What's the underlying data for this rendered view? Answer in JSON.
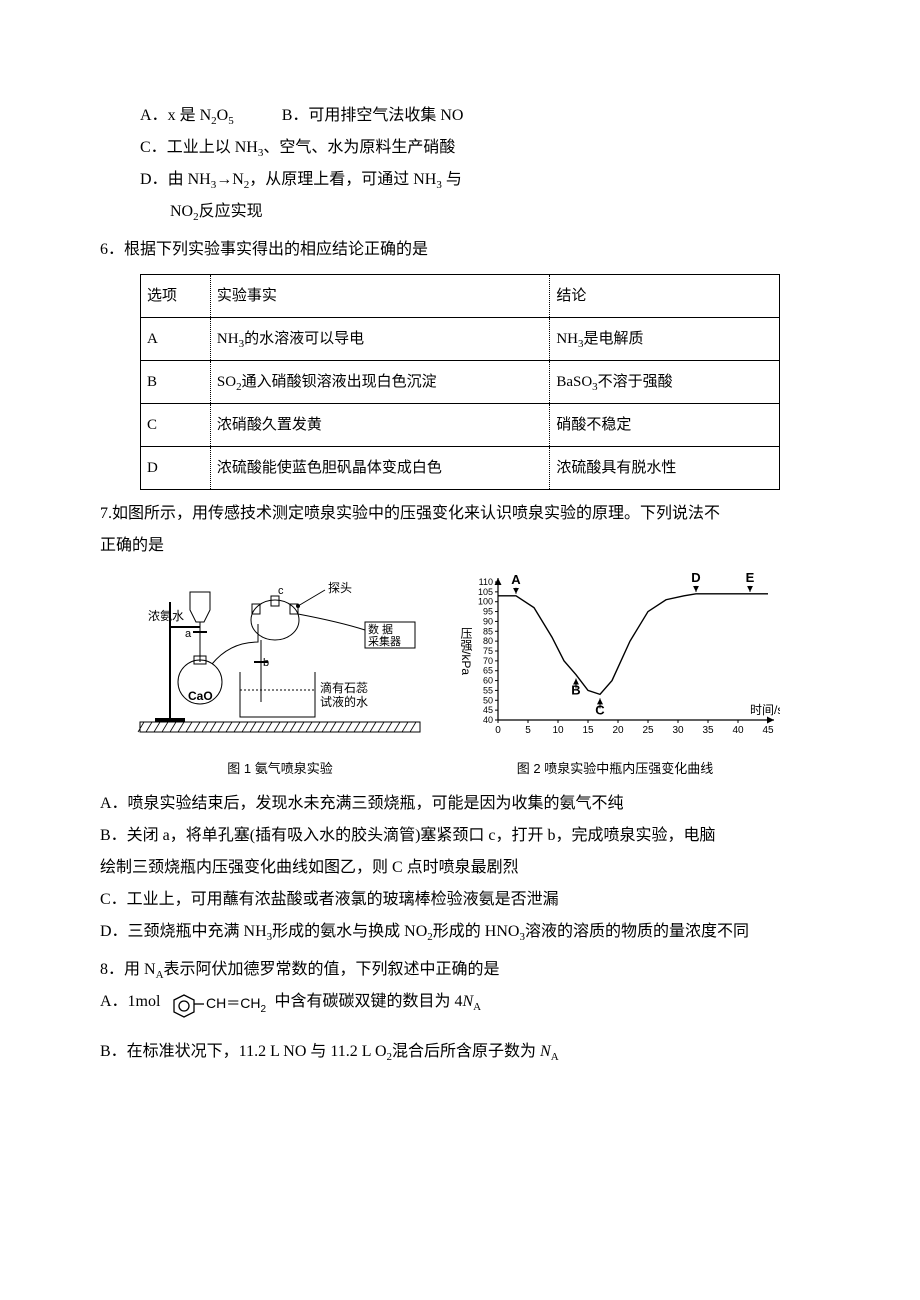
{
  "answers_block": {
    "a": {
      "prefix": "A．",
      "text": "x 是 N",
      "sub1": "2",
      "mid": "O",
      "sub2": "5"
    },
    "b": {
      "prefix": "B．",
      "text": "可用排空气法收集 NO"
    },
    "c": {
      "prefix": "C．",
      "text": "工业上以 NH",
      "sub1": "3",
      "tail": "、空气、水为原料生产硝酸"
    },
    "d": {
      "prefix": "D．",
      "part1a": "由 NH",
      "sub1": "3",
      "part1b": "→N",
      "sub2": "2",
      "part1c": "，从原理上看，可通过 NH",
      "sub3": "3",
      "part1d": " 与",
      "line2a": "NO",
      "line2sub": "2",
      "line2b": "反应实现"
    }
  },
  "q6": {
    "stem": "6．根据下列实验事实得出的相应结论正确的是",
    "table": {
      "header": {
        "c1": "选项",
        "c2": "实验事实",
        "c3": "结论"
      },
      "rows": [
        {
          "c1": "A",
          "c2a": "NH",
          "c2sub": "3",
          "c2b": "的水溶液可以导电",
          "c3a": "NH",
          "c3sub": "3",
          "c3b": "是电解质"
        },
        {
          "c1": "B",
          "c2a": "SO",
          "c2sub": "2",
          "c2b": "通入硝酸钡溶液出现白色沉淀",
          "c3a": "BaSO",
          "c3sub": "3",
          "c3b": "不溶于强酸"
        },
        {
          "c1": "C",
          "c2": "浓硝酸久置发黄",
          "c3": "硝酸不稳定"
        },
        {
          "c1": "D",
          "c2": "浓硫酸能使蓝色胆矾晶体变成白色",
          "c3": "浓硫酸具有脱水性"
        }
      ]
    }
  },
  "q7": {
    "stem1": "7.如图所示，用传感技术测定喷泉实验中的压强变化来认识喷泉实验的原理。下列说法不",
    "stem2": "正确的是",
    "fig1": {
      "caption": "图 1  氨气喷泉实验",
      "labels": {
        "probe": "探头",
        "ammonia": "浓氨水",
        "collector_a": "数   据",
        "collector_b": "采集器",
        "cao": "CaO",
        "water_a": "滴有石蕊",
        "water_b": "试液的水",
        "a": "a",
        "b": "b",
        "c": "c"
      },
      "colors": {
        "stroke": "#000000",
        "fill_bg": "#ffffff",
        "hatch": "#000000"
      }
    },
    "fig2": {
      "caption": "图 2  喷泉实验中瓶内压强变化曲线",
      "xlabel": "时间/s",
      "ylabel": "压强/kPa",
      "xlim": [
        0,
        45
      ],
      "ylim": [
        40,
        110
      ],
      "xticks": [
        0,
        5,
        10,
        15,
        20,
        25,
        30,
        35,
        40,
        45
      ],
      "yticks": [
        40,
        45,
        50,
        55,
        60,
        65,
        70,
        75,
        80,
        85,
        90,
        95,
        100,
        105,
        110
      ],
      "point_labels": {
        "A": "A",
        "B": "B",
        "C": "C",
        "D": "D",
        "E": "E"
      },
      "points": {
        "A": [
          3,
          103
        ],
        "B": [
          13,
          63
        ],
        "C": [
          17,
          53
        ],
        "D": [
          33,
          104
        ],
        "E": [
          42,
          104
        ]
      },
      "curve_pts": [
        [
          0,
          103
        ],
        [
          3,
          103
        ],
        [
          6,
          97
        ],
        [
          9,
          82
        ],
        [
          11,
          70
        ],
        [
          13,
          63
        ],
        [
          15,
          55
        ],
        [
          17,
          53
        ],
        [
          19,
          60
        ],
        [
          22,
          80
        ],
        [
          25,
          95
        ],
        [
          28,
          101
        ],
        [
          31,
          103
        ],
        [
          33,
          104
        ],
        [
          45,
          104
        ]
      ],
      "colors": {
        "axis": "#000000",
        "curve": "#000000",
        "bg": "#ffffff"
      },
      "line_width": 1.4
    },
    "a": "A．喷泉实验结束后，发现水未充满三颈烧瓶，可能是因为收集的氨气不纯",
    "b1": "B．关闭 a，将单孔塞(插有吸入水的胶头滴管)塞紧颈口 c，打开 b，完成喷泉实验，电脑",
    "b2": "绘制三颈烧瓶内压强变化曲线如图乙，则 C 点时喷泉最剧烈",
    "c": "C．工业上，可用蘸有浓盐酸或者液氯的玻璃棒检验液氨是否泄漏",
    "d_a": "D．三颈烧瓶中充满 NH",
    "d_s1": "3",
    "d_b": "形成的氨水与换成 NO",
    "d_s2": "2",
    "d_c": "形成的 HNO",
    "d_s3": "3",
    "d_d": "溶液的溶质的物质的量浓度不同"
  },
  "q8": {
    "stem_a": "8．用 N",
    "stem_sub": "A",
    "stem_b": "表示阿伏加德罗常数的值，下列叙述中正确的是",
    "a": {
      "pre": "A．1mol",
      "group": "CH＝CH",
      "group_sub": "2",
      "post_a": "中含有碳碳双键的数目为 4",
      "post_i": "N",
      "post_sub": "A"
    },
    "b": {
      "pre": "B．在标准状况下，11.2 L NO 与 11.2 L O",
      "sub1": "2",
      "mid": "混合后所含原子数为 ",
      "i": "N",
      "sub2": "A"
    }
  }
}
